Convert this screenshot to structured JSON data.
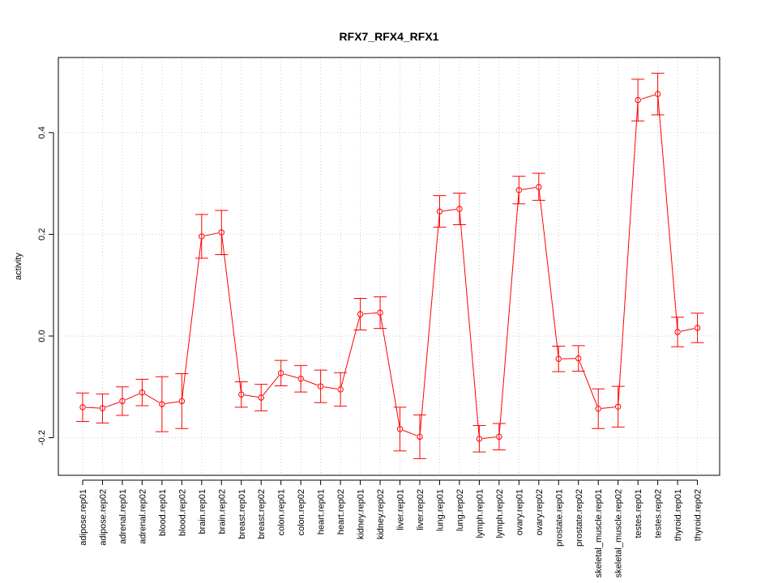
{
  "chart_data": {
    "type": "line",
    "title": "RFX7_RFX4_RFX1",
    "xlabel": "",
    "ylabel": "activity",
    "ylim": [
      -0.27,
      0.545
    ],
    "yticks": [
      -0.2,
      0.0,
      0.2,
      0.4
    ],
    "ytick_labels": [
      "-0.2",
      "0.0",
      "0.2",
      "0.4"
    ],
    "grid": true,
    "colors": {
      "series": "#ff0000",
      "grid": "#cccccc",
      "axis": "#000000"
    },
    "categories": [
      "adipose.rep01",
      "adipose.rep02",
      "adrenal.rep01",
      "adrenal.rep02",
      "blood.rep01",
      "blood.rep02",
      "brain.rep01",
      "brain.rep02",
      "breast.rep01",
      "breast.rep02",
      "colon.rep01",
      "colon.rep02",
      "heart.rep01",
      "heart.rep02",
      "kidney.rep01",
      "kidney.rep02",
      "liver.rep01",
      "liver.rep02",
      "lung.rep01",
      "lung.rep02",
      "lymph.rep01",
      "lymph.rep02",
      "ovary.rep01",
      "ovary.rep02",
      "prostate.rep01",
      "prostate.rep02",
      "skeletal_muscle.rep01",
      "skeletal_muscle.rep02",
      "testes.rep01",
      "testes.rep02",
      "thyroid.rep01",
      "thyroid.rep02"
    ],
    "series": [
      {
        "name": "activity",
        "values": [
          -0.14,
          -0.142,
          -0.128,
          -0.111,
          -0.134,
          -0.128,
          0.196,
          0.204,
          -0.115,
          -0.121,
          -0.073,
          -0.084,
          -0.099,
          -0.105,
          0.043,
          0.046,
          -0.183,
          -0.198,
          0.245,
          0.25,
          -0.202,
          -0.198,
          0.287,
          0.293,
          -0.045,
          -0.044,
          -0.143,
          -0.139,
          0.464,
          0.476,
          0.008,
          0.016
        ],
        "lower": [
          -0.168,
          -0.171,
          -0.156,
          -0.137,
          -0.188,
          -0.182,
          0.153,
          0.16,
          -0.14,
          -0.147,
          -0.098,
          -0.11,
          -0.131,
          -0.138,
          0.012,
          0.015,
          -0.226,
          -0.241,
          0.214,
          0.219,
          -0.228,
          -0.224,
          0.26,
          0.267,
          -0.07,
          -0.069,
          -0.182,
          -0.179,
          0.423,
          0.435,
          -0.021,
          -0.013
        ],
        "upper": [
          -0.112,
          -0.114,
          -0.1,
          -0.085,
          -0.08,
          -0.074,
          0.239,
          0.247,
          -0.09,
          -0.095,
          -0.048,
          -0.058,
          -0.067,
          -0.072,
          0.074,
          0.077,
          -0.14,
          -0.155,
          0.276,
          0.281,
          -0.176,
          -0.172,
          0.314,
          0.32,
          -0.02,
          -0.019,
          -0.104,
          -0.099,
          0.505,
          0.517,
          0.037,
          0.045
        ]
      }
    ]
  }
}
